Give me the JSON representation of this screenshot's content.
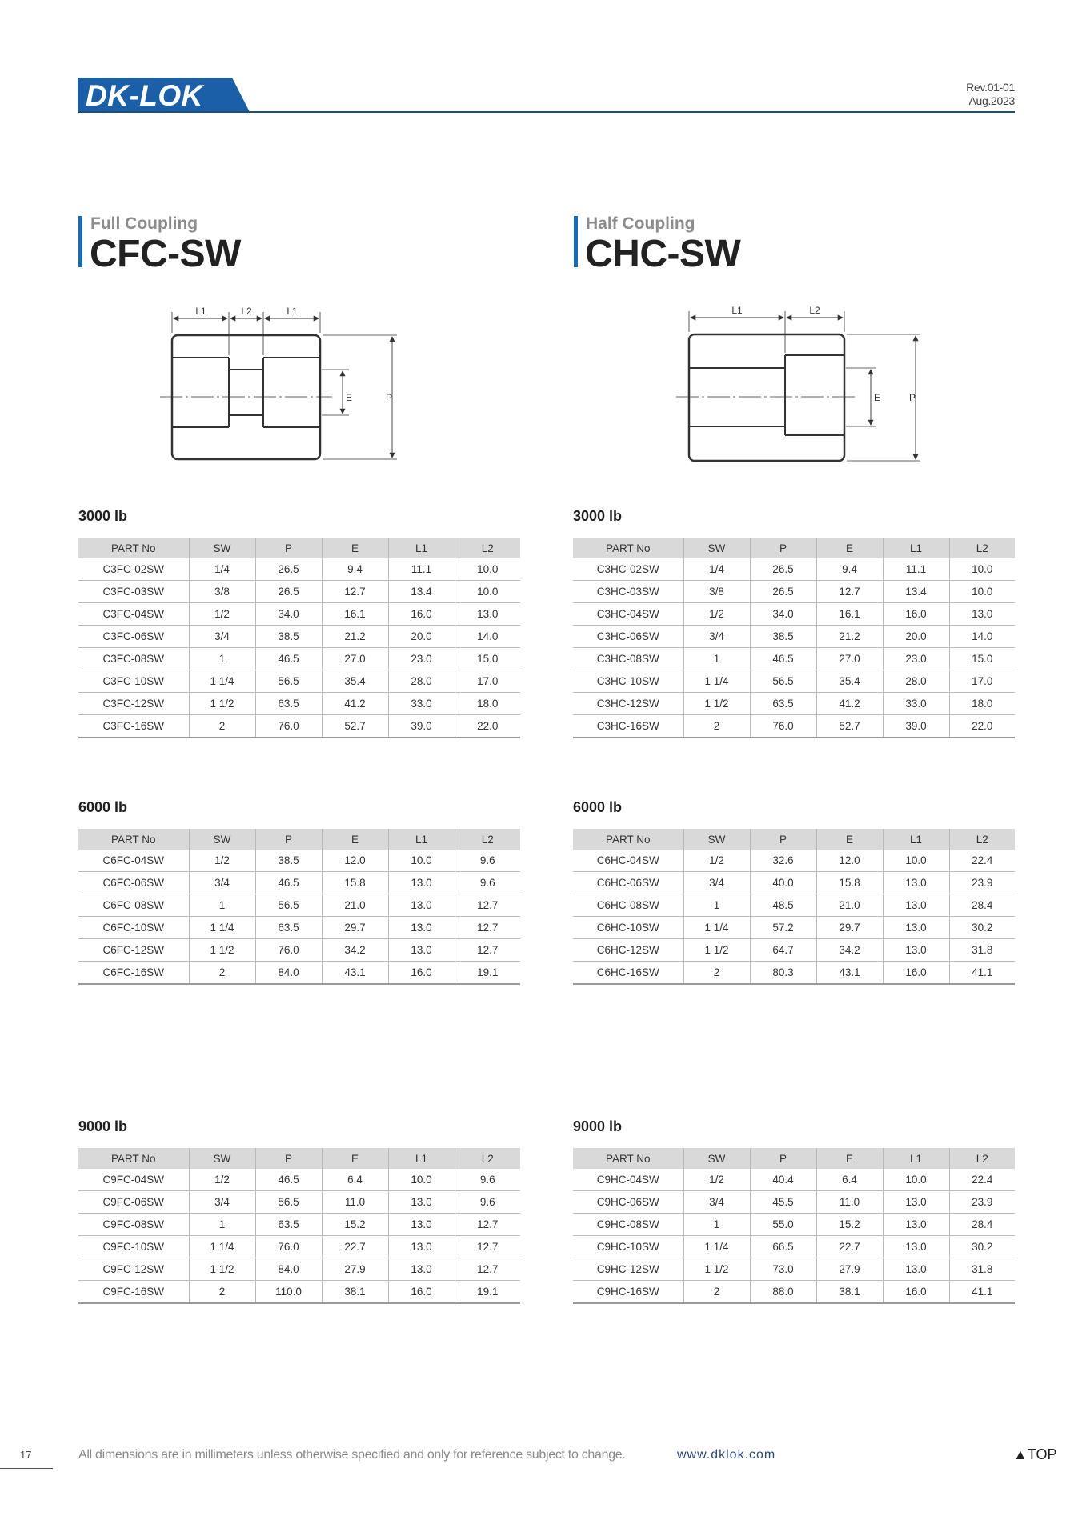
{
  "header": {
    "logo_text": "DK-LOK",
    "revision": "Rev.01-01",
    "date": "Aug.2023"
  },
  "full": {
    "subtitle": "Full Coupling",
    "title": "CFC-SW",
    "dim_labels": {
      "l1": "L1",
      "l2": "L2",
      "e": "E",
      "p": "P"
    }
  },
  "half": {
    "subtitle": "Half Coupling",
    "title": "CHC-SW",
    "dim_labels": {
      "l1": "L1",
      "l2": "L2",
      "e": "E",
      "p": "P"
    }
  },
  "columns": [
    "PART No",
    "SW",
    "P",
    "E",
    "L1",
    "L2"
  ],
  "tables": [
    {
      "grade": "3000 lb",
      "rows": [
        [
          "C3FC-02SW",
          "1/4",
          "26.5",
          "9.4",
          "11.1",
          "10.0"
        ],
        [
          "C3FC-03SW",
          "3/8",
          "26.5",
          "12.7",
          "13.4",
          "10.0"
        ],
        [
          "C3FC-04SW",
          "1/2",
          "34.0",
          "16.1",
          "16.0",
          "13.0"
        ],
        [
          "C3FC-06SW",
          "3/4",
          "38.5",
          "21.2",
          "20.0",
          "14.0"
        ],
        [
          "C3FC-08SW",
          "1",
          "46.5",
          "27.0",
          "23.0",
          "15.0"
        ],
        [
          "C3FC-10SW",
          "1 1/4",
          "56.5",
          "35.4",
          "28.0",
          "17.0"
        ],
        [
          "C3FC-12SW",
          "1 1/2",
          "63.5",
          "41.2",
          "33.0",
          "18.0"
        ],
        [
          "C3FC-16SW",
          "2",
          "76.0",
          "52.7",
          "39.0",
          "22.0"
        ]
      ]
    },
    {
      "grade": "3000 lb",
      "rows": [
        [
          "C3HC-02SW",
          "1/4",
          "26.5",
          "9.4",
          "11.1",
          "10.0"
        ],
        [
          "C3HC-03SW",
          "3/8",
          "26.5",
          "12.7",
          "13.4",
          "10.0"
        ],
        [
          "C3HC-04SW",
          "1/2",
          "34.0",
          "16.1",
          "16.0",
          "13.0"
        ],
        [
          "C3HC-06SW",
          "3/4",
          "38.5",
          "21.2",
          "20.0",
          "14.0"
        ],
        [
          "C3HC-08SW",
          "1",
          "46.5",
          "27.0",
          "23.0",
          "15.0"
        ],
        [
          "C3HC-10SW",
          "1 1/4",
          "56.5",
          "35.4",
          "28.0",
          "17.0"
        ],
        [
          "C3HC-12SW",
          "1 1/2",
          "63.5",
          "41.2",
          "33.0",
          "18.0"
        ],
        [
          "C3HC-16SW",
          "2",
          "76.0",
          "52.7",
          "39.0",
          "22.0"
        ]
      ]
    },
    {
      "grade": "6000 lb",
      "rows": [
        [
          "C6FC-04SW",
          "1/2",
          "38.5",
          "12.0",
          "10.0",
          "9.6"
        ],
        [
          "C6FC-06SW",
          "3/4",
          "46.5",
          "15.8",
          "13.0",
          "9.6"
        ],
        [
          "C6FC-08SW",
          "1",
          "56.5",
          "21.0",
          "13.0",
          "12.7"
        ],
        [
          "C6FC-10SW",
          "1 1/4",
          "63.5",
          "29.7",
          "13.0",
          "12.7"
        ],
        [
          "C6FC-12SW",
          "1 1/2",
          "76.0",
          "34.2",
          "13.0",
          "12.7"
        ],
        [
          "C6FC-16SW",
          "2",
          "84.0",
          "43.1",
          "16.0",
          "19.1"
        ]
      ]
    },
    {
      "grade": "6000 lb",
      "rows": [
        [
          "C6HC-04SW",
          "1/2",
          "32.6",
          "12.0",
          "10.0",
          "22.4"
        ],
        [
          "C6HC-06SW",
          "3/4",
          "40.0",
          "15.8",
          "13.0",
          "23.9"
        ],
        [
          "C6HC-08SW",
          "1",
          "48.5",
          "21.0",
          "13.0",
          "28.4"
        ],
        [
          "C6HC-10SW",
          "1 1/4",
          "57.2",
          "29.7",
          "13.0",
          "30.2"
        ],
        [
          "C6HC-12SW",
          "1 1/2",
          "64.7",
          "34.2",
          "13.0",
          "31.8"
        ],
        [
          "C6HC-16SW",
          "2",
          "80.3",
          "43.1",
          "16.0",
          "41.1"
        ]
      ]
    },
    {
      "grade": "9000 lb",
      "rows": [
        [
          "C9FC-04SW",
          "1/2",
          "46.5",
          "6.4",
          "10.0",
          "9.6"
        ],
        [
          "C9FC-06SW",
          "3/4",
          "56.5",
          "11.0",
          "13.0",
          "9.6"
        ],
        [
          "C9FC-08SW",
          "1",
          "63.5",
          "15.2",
          "13.0",
          "12.7"
        ],
        [
          "C9FC-10SW",
          "1 1/4",
          "76.0",
          "22.7",
          "13.0",
          "12.7"
        ],
        [
          "C9FC-12SW",
          "1 1/2",
          "84.0",
          "27.9",
          "13.0",
          "12.7"
        ],
        [
          "C9FC-16SW",
          "2",
          "110.0",
          "38.1",
          "16.0",
          "19.1"
        ]
      ]
    },
    {
      "grade": "9000 lb",
      "rows": [
        [
          "C9HC-04SW",
          "1/2",
          "40.4",
          "6.4",
          "10.0",
          "22.4"
        ],
        [
          "C9HC-06SW",
          "3/4",
          "45.5",
          "11.0",
          "13.0",
          "23.9"
        ],
        [
          "C9HC-08SW",
          "1",
          "55.0",
          "15.2",
          "13.0",
          "28.4"
        ],
        [
          "C9HC-10SW",
          "1 1/4",
          "66.5",
          "22.7",
          "13.0",
          "30.2"
        ],
        [
          "C9HC-12SW",
          "1 1/2",
          "73.0",
          "27.9",
          "13.0",
          "31.8"
        ],
        [
          "C9HC-16SW",
          "2",
          "88.0",
          "38.1",
          "16.0",
          "41.1"
        ]
      ]
    }
  ],
  "footer": {
    "page_number": "17",
    "note": "All dimensions are in millimeters unless otherwise specified and only for reference subject to change.",
    "url": "www.dklok.com",
    "top_label": "TOP",
    "top_icon": "up-triangle-icon"
  }
}
